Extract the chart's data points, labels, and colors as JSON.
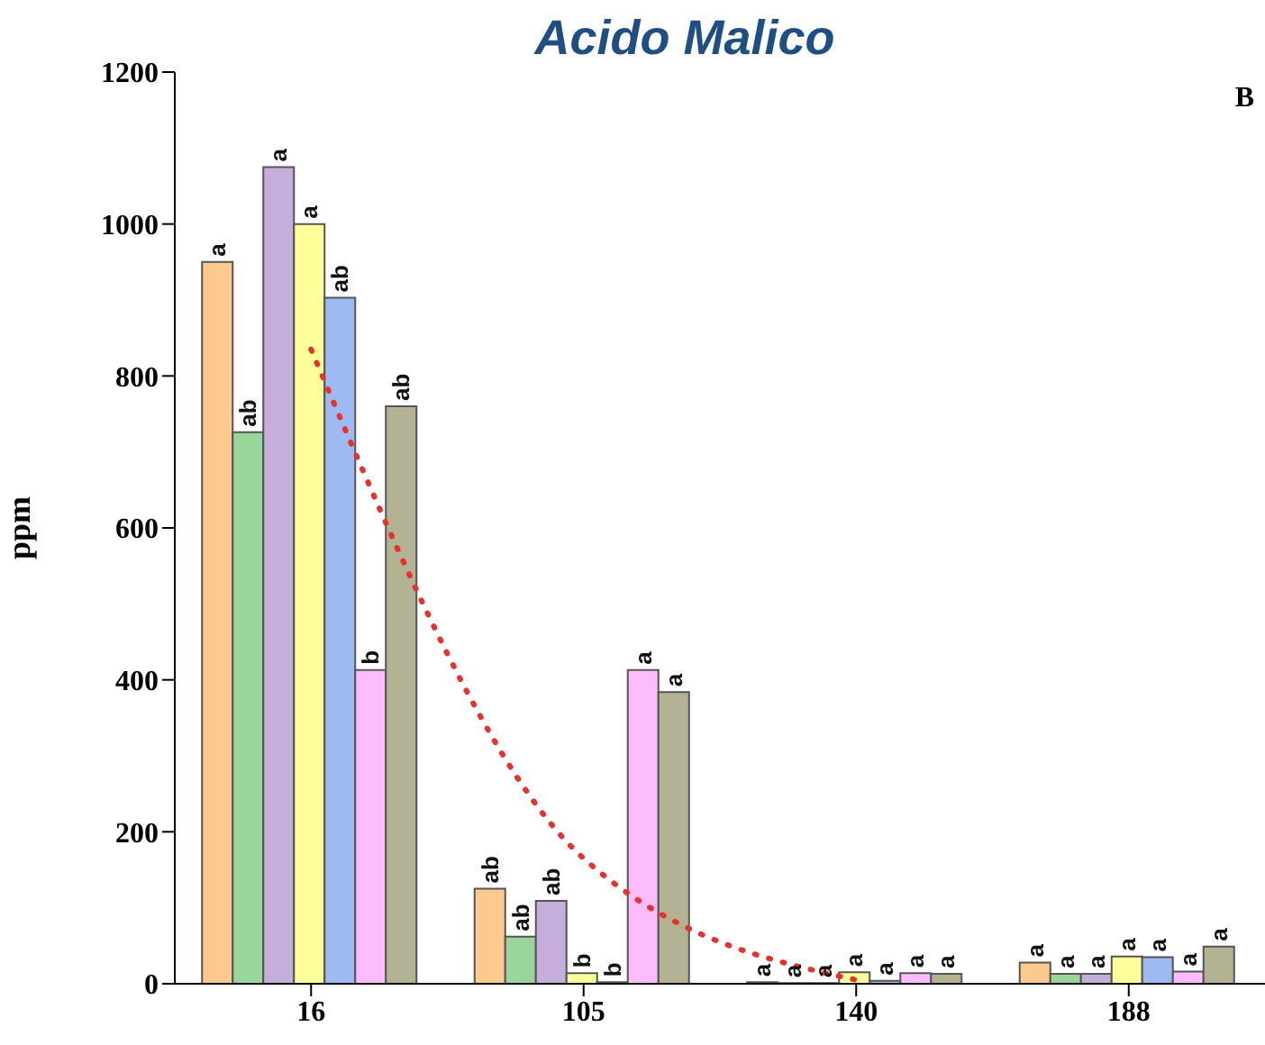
{
  "chart_data": {
    "type": "bar",
    "title": "Acido Malico",
    "ylabel": "ppm",
    "annotations": [
      "B"
    ],
    "categories": [
      "16",
      "105",
      "140",
      "188"
    ],
    "ylim": [
      0,
      1200
    ],
    "yticks": [
      0,
      200,
      400,
      600,
      800,
      1000,
      1200
    ],
    "grid": false,
    "legend": false,
    "series": [
      {
        "color": "#fdc98f",
        "values": [
          950,
          125,
          2,
          28
        ],
        "value_labels": [
          "a",
          "ab",
          "a",
          "a"
        ]
      },
      {
        "color": "#98d69b",
        "values": [
          726,
          62,
          1,
          13
        ],
        "value_labels": [
          "ab",
          "ab",
          "a",
          "a"
        ]
      },
      {
        "color": "#c5aedb",
        "values": [
          1075,
          109,
          1,
          13
        ],
        "value_labels": [
          "a",
          "ab",
          "a",
          "a"
        ]
      },
      {
        "color": "#ffff99",
        "values": [
          1000,
          14,
          15,
          36
        ],
        "value_labels": [
          "a",
          "b",
          "a",
          "a"
        ]
      },
      {
        "color": "#9ebaf0",
        "values": [
          903,
          2,
          4,
          35
        ],
        "value_labels": [
          "ab",
          "b",
          "a",
          "a"
        ]
      },
      {
        "color": "#fdbcfb",
        "values": [
          413,
          413,
          14,
          16
        ],
        "value_labels": [
          "b",
          "a",
          "a",
          "a"
        ]
      },
      {
        "color": "#b3b394",
        "values": [
          760,
          384,
          13,
          49
        ],
        "value_labels": [
          "ab",
          "a",
          "a",
          "a"
        ]
      },
      {
        "type": "line",
        "color": "#e8312f",
        "values": [
          835,
          165,
          5,
          null
        ],
        "line_style": "dotted",
        "marker": "none"
      }
    ]
  }
}
